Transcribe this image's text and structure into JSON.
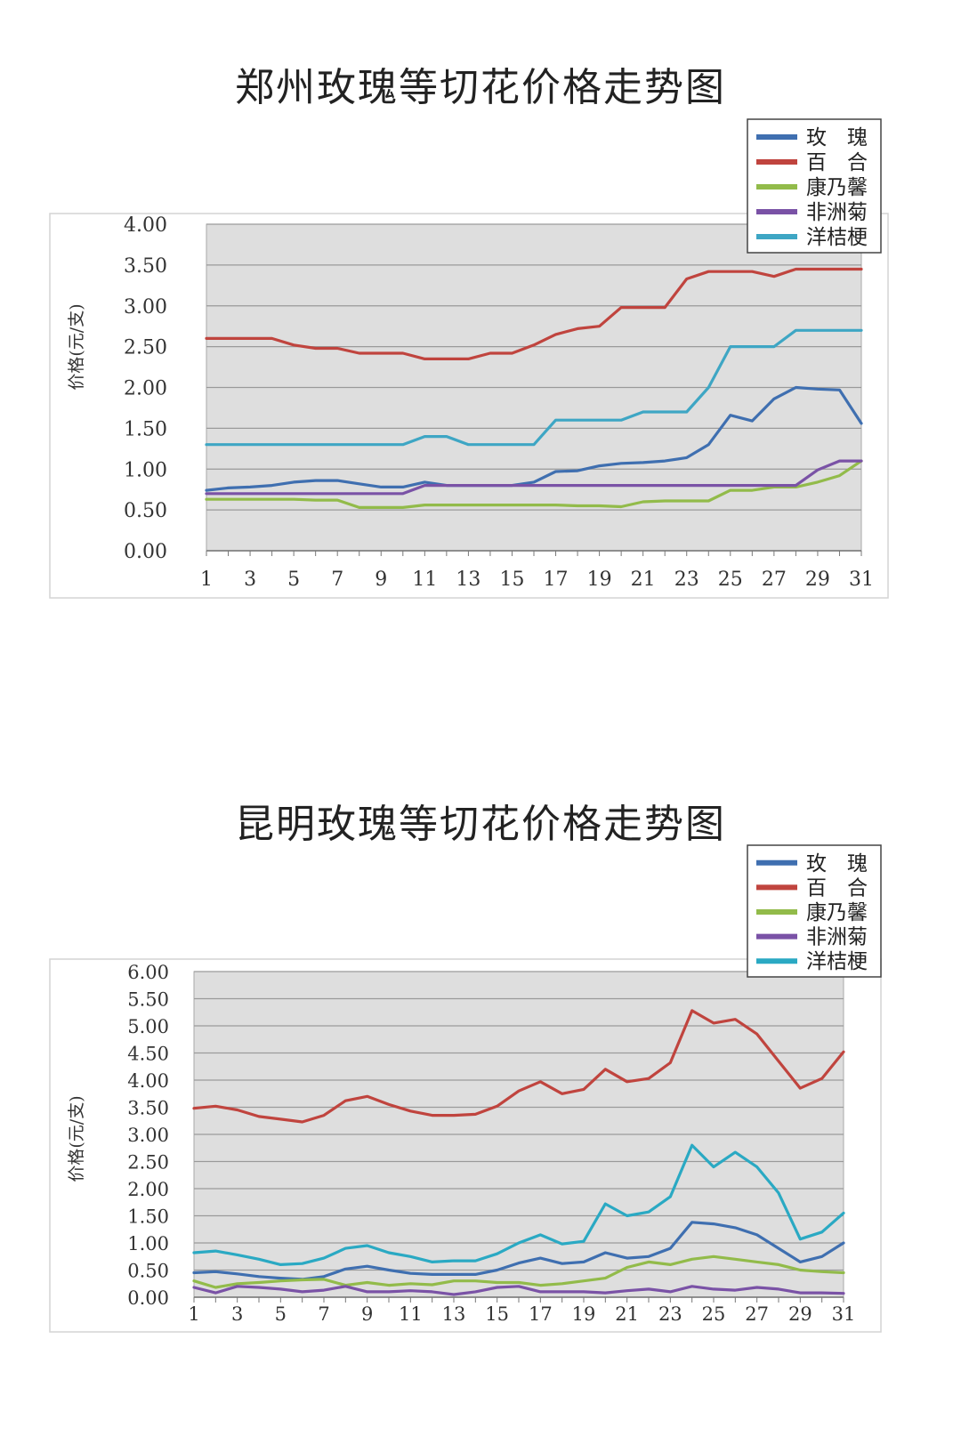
{
  "chart_data": [
    {
      "type": "line",
      "title": "郑州玫瑰等切花价格走势图",
      "ylabel": "价格(元/支)",
      "xlabel": "",
      "ylim": [
        0,
        4
      ],
      "yticks": [
        "0.00",
        "0.50",
        "1.00",
        "1.50",
        "2.00",
        "2.50",
        "3.00",
        "3.50",
        "4.00"
      ],
      "x": [
        1,
        2,
        3,
        4,
        5,
        6,
        7,
        8,
        9,
        10,
        11,
        12,
        13,
        14,
        15,
        16,
        17,
        18,
        19,
        20,
        21,
        22,
        23,
        24,
        25,
        26,
        27,
        28,
        29,
        30,
        31
      ],
      "xticks": [
        "1",
        "3",
        "5",
        "7",
        "9",
        "11",
        "13",
        "15",
        "17",
        "19",
        "21",
        "23",
        "25",
        "27",
        "29",
        "31"
      ],
      "grid": true,
      "legend_position": "top-right",
      "series": [
        {
          "name": "玫　瑰",
          "color": "#3f6fb0",
          "values": [
            0.74,
            0.77,
            0.78,
            0.8,
            0.84,
            0.86,
            0.86,
            0.82,
            0.78,
            0.78,
            0.84,
            0.8,
            0.8,
            0.8,
            0.8,
            0.84,
            0.97,
            0.98,
            1.04,
            1.07,
            1.08,
            1.1,
            1.14,
            1.3,
            1.66,
            1.59,
            1.86,
            2.0,
            1.98,
            1.97,
            1.56
          ]
        },
        {
          "name": "百　合",
          "color": "#c0443e",
          "values": [
            2.6,
            2.6,
            2.6,
            2.6,
            2.52,
            2.48,
            2.48,
            2.42,
            2.42,
            2.42,
            2.35,
            2.35,
            2.35,
            2.42,
            2.42,
            2.52,
            2.65,
            2.72,
            2.75,
            2.98,
            2.98,
            2.98,
            3.33,
            3.42,
            3.42,
            3.42,
            3.36,
            3.45,
            3.45,
            3.45,
            3.45
          ]
        },
        {
          "name": "康乃馨",
          "color": "#92bb4a",
          "values": [
            0.63,
            0.63,
            0.63,
            0.63,
            0.63,
            0.62,
            0.62,
            0.53,
            0.53,
            0.53,
            0.56,
            0.56,
            0.56,
            0.56,
            0.56,
            0.56,
            0.56,
            0.55,
            0.55,
            0.54,
            0.6,
            0.61,
            0.61,
            0.61,
            0.74,
            0.74,
            0.78,
            0.78,
            0.84,
            0.92,
            1.1
          ]
        },
        {
          "name": "非洲菊",
          "color": "#7a52a6",
          "values": [
            0.7,
            0.7,
            0.7,
            0.7,
            0.7,
            0.7,
            0.7,
            0.7,
            0.7,
            0.7,
            0.8,
            0.8,
            0.8,
            0.8,
            0.8,
            0.8,
            0.8,
            0.8,
            0.8,
            0.8,
            0.8,
            0.8,
            0.8,
            0.8,
            0.8,
            0.8,
            0.8,
            0.8,
            0.99,
            1.1,
            1.1
          ]
        },
        {
          "name": "洋桔梗",
          "color": "#3ea6c4",
          "values": [
            1.3,
            1.3,
            1.3,
            1.3,
            1.3,
            1.3,
            1.3,
            1.3,
            1.3,
            1.3,
            1.4,
            1.4,
            1.3,
            1.3,
            1.3,
            1.3,
            1.6,
            1.6,
            1.6,
            1.6,
            1.7,
            1.7,
            1.7,
            2.0,
            2.5,
            2.5,
            2.5,
            2.7,
            2.7,
            2.7,
            2.7
          ]
        }
      ]
    },
    {
      "type": "line",
      "title": "昆明玫瑰等切花价格走势图",
      "ylabel": "价格(元/支)",
      "xlabel": "",
      "ylim": [
        0,
        6
      ],
      "yticks": [
        "0.00",
        "0.50",
        "1.00",
        "1.50",
        "2.00",
        "2.50",
        "3.00",
        "3.50",
        "4.00",
        "4.50",
        "5.00",
        "5.50",
        "6.00"
      ],
      "x": [
        1,
        2,
        3,
        4,
        5,
        6,
        7,
        8,
        9,
        10,
        11,
        12,
        13,
        14,
        15,
        16,
        17,
        18,
        19,
        20,
        21,
        22,
        23,
        24,
        25,
        26,
        27,
        28,
        29,
        30,
        31
      ],
      "xticks": [
        "1",
        "3",
        "5",
        "7",
        "9",
        "11",
        "13",
        "15",
        "17",
        "19",
        "21",
        "23",
        "25",
        "27",
        "29",
        "31"
      ],
      "grid": true,
      "legend_position": "top-right",
      "series": [
        {
          "name": "玫　瑰",
          "color": "#3f6fb0",
          "values": [
            0.45,
            0.47,
            0.43,
            0.38,
            0.35,
            0.33,
            0.38,
            0.52,
            0.57,
            0.5,
            0.44,
            0.42,
            0.42,
            0.42,
            0.5,
            0.63,
            0.72,
            0.62,
            0.65,
            0.82,
            0.72,
            0.75,
            0.9,
            1.38,
            1.35,
            1.28,
            1.15,
            0.9,
            0.65,
            0.75,
            1.0
          ]
        },
        {
          "name": "百　合",
          "color": "#c0443e",
          "values": [
            3.48,
            3.52,
            3.45,
            3.33,
            3.28,
            3.23,
            3.35,
            3.62,
            3.7,
            3.55,
            3.43,
            3.35,
            3.35,
            3.37,
            3.52,
            3.8,
            3.97,
            3.75,
            3.83,
            4.2,
            3.97,
            4.03,
            4.32,
            5.28,
            5.05,
            5.12,
            4.85,
            4.35,
            3.85,
            4.03,
            4.52
          ]
        },
        {
          "name": "康乃馨",
          "color": "#92bb4a",
          "values": [
            0.3,
            0.18,
            0.25,
            0.27,
            0.3,
            0.32,
            0.33,
            0.22,
            0.27,
            0.22,
            0.25,
            0.23,
            0.3,
            0.3,
            0.27,
            0.27,
            0.22,
            0.25,
            0.3,
            0.35,
            0.55,
            0.65,
            0.6,
            0.7,
            0.75,
            0.7,
            0.65,
            0.6,
            0.5,
            0.47,
            0.45
          ]
        },
        {
          "name": "非洲菊",
          "color": "#7a52a6",
          "values": [
            0.18,
            0.08,
            0.2,
            0.18,
            0.15,
            0.1,
            0.13,
            0.2,
            0.1,
            0.1,
            0.12,
            0.1,
            0.05,
            0.1,
            0.18,
            0.2,
            0.1,
            0.1,
            0.1,
            0.08,
            0.12,
            0.15,
            0.1,
            0.2,
            0.15,
            0.13,
            0.18,
            0.15,
            0.08,
            0.08,
            0.07
          ]
        },
        {
          "name": "洋桔梗",
          "color": "#2aa9c3",
          "values": [
            0.82,
            0.85,
            0.78,
            0.7,
            0.6,
            0.62,
            0.72,
            0.9,
            0.95,
            0.82,
            0.75,
            0.65,
            0.67,
            0.67,
            0.8,
            1.0,
            1.15,
            0.98,
            1.03,
            1.72,
            1.5,
            1.57,
            1.85,
            2.8,
            2.4,
            2.67,
            2.4,
            1.92,
            1.07,
            1.2,
            1.55
          ]
        }
      ]
    }
  ]
}
